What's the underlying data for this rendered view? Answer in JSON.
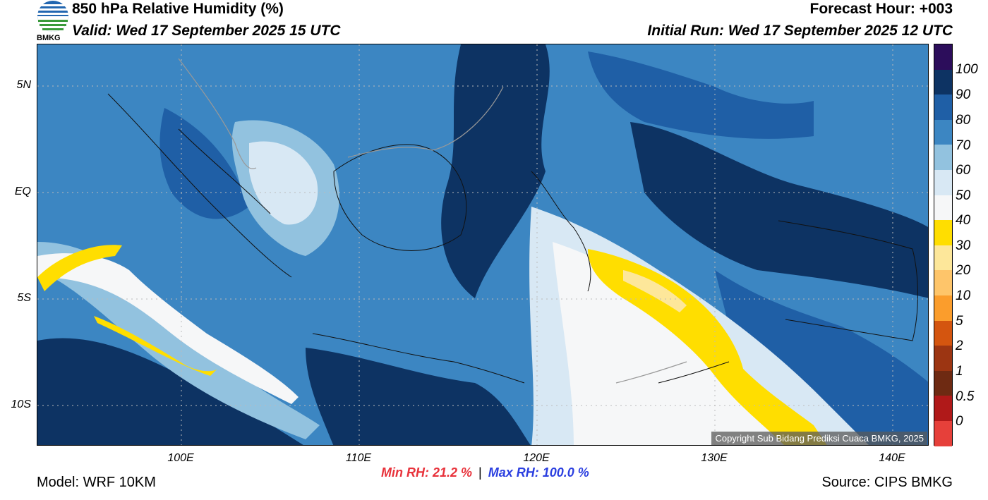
{
  "header": {
    "title": "850 hPa Relative Humidity (%)",
    "valid": "Valid: Wed 17 September 2025 15 UTC",
    "forecast_hour": "Forecast Hour: +003",
    "initial_run": "Initial Run: Wed 17 September 2025 12 UTC",
    "logo_text": "BMKG"
  },
  "axes": {
    "lat_labels": [
      "5N",
      "EQ",
      "5S",
      "10S"
    ],
    "lon_labels": [
      "100E",
      "110E",
      "120E",
      "130E",
      "140E"
    ]
  },
  "colorbar": {
    "labels": [
      "100",
      "90",
      "80",
      "70",
      "60",
      "50",
      "40",
      "30",
      "20",
      "10",
      "5",
      "2",
      "1",
      "0.5",
      "0"
    ],
    "colors": [
      "#2c0d5b",
      "#0d3363",
      "#1f5fa6",
      "#3c86c2",
      "#92c2df",
      "#d8e8f4",
      "#f6f7f8",
      "#ffde00",
      "#fde79a",
      "#fec56a",
      "#fb9d2c",
      "#d4550f",
      "#9c3512",
      "#6e2a12",
      "#b01919",
      "#e6403a"
    ]
  },
  "footer": {
    "copyright": "Copyright Sub Bidang Prediksi Cuaca BMKG, 2025",
    "min_rh": "Min RH:  21.2 %",
    "separator": "|",
    "max_rh": "Max RH: 100.0 %",
    "model": "Model: WRF 10KM",
    "source": "Source: CIPS BMKG"
  }
}
